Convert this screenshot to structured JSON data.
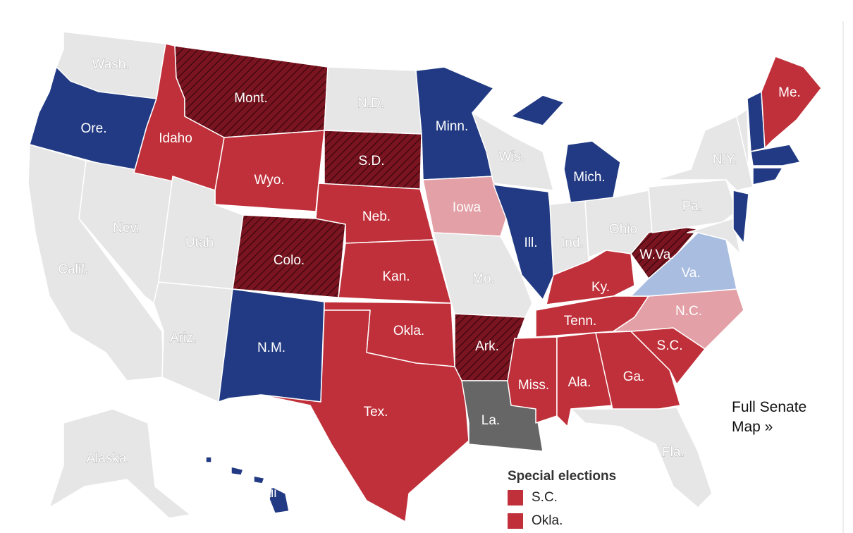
{
  "map": {
    "states": [
      {
        "label": "Wash.",
        "color": "#e6e6e6",
        "hatched": false
      },
      {
        "label": "Ore.",
        "color": "#213a83",
        "hatched": false
      },
      {
        "label": "Calif.",
        "color": "#e6e6e6",
        "hatched": false
      },
      {
        "label": "Nev.",
        "color": "#e6e6e6",
        "hatched": false
      },
      {
        "label": "Idaho",
        "color": "#c0303a",
        "hatched": false
      },
      {
        "label": "Mont.",
        "color": "#7a1420",
        "hatched": true
      },
      {
        "label": "Wyo.",
        "color": "#c0303a",
        "hatched": false
      },
      {
        "label": "Utah",
        "color": "#e6e6e6",
        "hatched": false
      },
      {
        "label": "Ariz.",
        "color": "#e6e6e6",
        "hatched": false
      },
      {
        "label": "Colo.",
        "color": "#7a1420",
        "hatched": true
      },
      {
        "label": "N.M.",
        "color": "#213a83",
        "hatched": false
      },
      {
        "label": "N.D.",
        "color": "#e6e6e6",
        "hatched": false
      },
      {
        "label": "S.D.",
        "color": "#7a1420",
        "hatched": true
      },
      {
        "label": "Neb.",
        "color": "#c0303a",
        "hatched": false
      },
      {
        "label": "Kan.",
        "color": "#c0303a",
        "hatched": false
      },
      {
        "label": "Okla.",
        "color": "#c0303a",
        "hatched": false
      },
      {
        "label": "Tex.",
        "color": "#c0303a",
        "hatched": false
      },
      {
        "label": "Minn.",
        "color": "#213a83",
        "hatched": false
      },
      {
        "label": "Iowa",
        "color": "#e3a0a6",
        "hatched": false
      },
      {
        "label": "Mo.",
        "color": "#e6e6e6",
        "hatched": false
      },
      {
        "label": "Ark.",
        "color": "#7a1420",
        "hatched": true
      },
      {
        "label": "La.",
        "color": "#666666",
        "hatched": false
      },
      {
        "label": "Wis.",
        "color": "#e6e6e6",
        "hatched": false
      },
      {
        "label": "Ill.",
        "color": "#213a83",
        "hatched": false
      },
      {
        "label": "Mich.",
        "color": "#213a83",
        "hatched": false
      },
      {
        "label": "Ind.",
        "color": "#e6e6e6",
        "hatched": false
      },
      {
        "label": "Ohio",
        "color": "#e6e6e6",
        "hatched": false
      },
      {
        "label": "Ky.",
        "color": "#c0303a",
        "hatched": false
      },
      {
        "label": "Tenn.",
        "color": "#c0303a",
        "hatched": false
      },
      {
        "label": "Miss.",
        "color": "#c0303a",
        "hatched": false
      },
      {
        "label": "Ala.",
        "color": "#c0303a",
        "hatched": false
      },
      {
        "label": "Ga.",
        "color": "#c0303a",
        "hatched": false
      },
      {
        "label": "Fla.",
        "color": "#e6e6e6",
        "hatched": false
      },
      {
        "label": "S.C.",
        "color": "#c0303a",
        "hatched": false
      },
      {
        "label": "N.C.",
        "color": "#e3a0a6",
        "hatched": false
      },
      {
        "label": "Va.",
        "color": "#a8bde0",
        "hatched": false
      },
      {
        "label": "W.Va.",
        "color": "#7a1420",
        "hatched": true
      },
      {
        "label": "Pa.",
        "color": "#e6e6e6",
        "hatched": false
      },
      {
        "label": "N.Y.",
        "color": "#e6e6e6",
        "hatched": false
      },
      {
        "label": null,
        "color": "#e6e6e6",
        "hatched": false
      },
      {
        "label": null,
        "color": "#213a83",
        "hatched": false
      },
      {
        "label": null,
        "color": "#e6e6e6",
        "hatched": false
      },
      {
        "label": null,
        "color": "#213a83",
        "hatched": false
      },
      {
        "label": "Me.",
        "color": "#c0303a",
        "hatched": false
      },
      {
        "label": null,
        "color": "#213a83",
        "hatched": false
      },
      {
        "label": null,
        "color": "#213a83",
        "hatched": false
      },
      {
        "label": "Alaska",
        "color": "#e6e6e6",
        "hatched": false
      },
      {
        "label": "Hawaii",
        "color": "#213a83",
        "hatched": false
      }
    ],
    "legend": {
      "title": "Special elections",
      "items": [
        {
          "label": "S.C.",
          "color": "#c0303a"
        },
        {
          "label": "Okla.",
          "color": "#c0303a"
        }
      ]
    },
    "link": "Full Senate Map »"
  }
}
